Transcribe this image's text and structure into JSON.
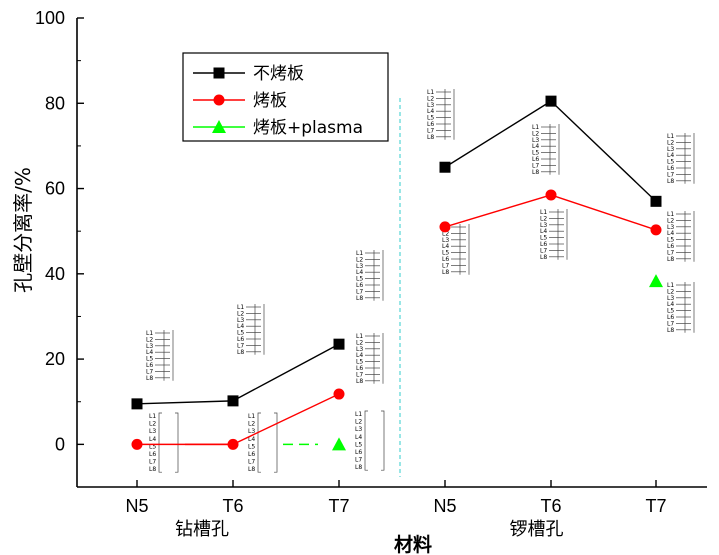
{
  "chart_data": {
    "type": "line",
    "ylabel": "孔壁分离率/%",
    "xlabel": "材料",
    "ylim": [
      -10,
      100
    ],
    "yticks": [
      0,
      20,
      40,
      60,
      80,
      100
    ],
    "categories": [
      "N5",
      "T6",
      "T7",
      "N5",
      "T6",
      "T7"
    ],
    "groups": [
      {
        "label": "钻槽孔",
        "categories": [
          "N5",
          "T6",
          "T7"
        ]
      },
      {
        "label": "锣槽孔",
        "categories": [
          "N5",
          "T6",
          "T7"
        ]
      }
    ],
    "series": [
      {
        "name": "不烤板",
        "color": "#000000",
        "marker": "square",
        "values": [
          9.5,
          10.2,
          23.5,
          65,
          80.5,
          57
        ]
      },
      {
        "name": "烤板",
        "color": "#ff0000",
        "marker": "circle",
        "values": [
          0,
          0,
          11.8,
          51,
          58.5,
          50.3
        ]
      },
      {
        "name": "烤板+plasma",
        "color": "#00ff00",
        "marker": "triangle",
        "values": [
          null,
          null,
          0,
          null,
          null,
          38.3
        ]
      }
    ],
    "layer_labels": [
      "L1",
      "L2",
      "L3",
      "L4",
      "L5",
      "L6",
      "L7",
      "L8"
    ],
    "grid": false,
    "legend_position": "top-left",
    "divider_color": "#33cccc"
  }
}
